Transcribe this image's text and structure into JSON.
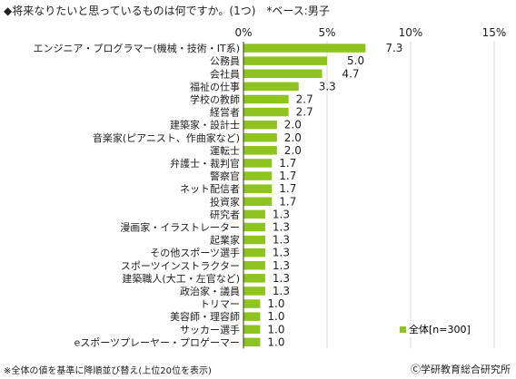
{
  "header": {
    "title": "◆将来なりたいと思っているものは何ですか。(1つ)　*ベース:男子"
  },
  "footer": {
    "note": "※全体の値を基準に降順並び替え(上位20位を表示)",
    "credit": "Ⓒ学研教育総合研究所"
  },
  "colors": {
    "bar": "#8fc31f",
    "grid": "#d9d9d9",
    "axis": "#333333"
  },
  "chart_data": {
    "type": "bar",
    "orientation": "horizontal",
    "x_ticks": [
      "0%",
      "5%",
      "10%",
      "15%"
    ],
    "xlim": [
      0,
      15
    ],
    "legend": {
      "label": "全体[n=300]",
      "position": "bottom-right"
    },
    "series": [
      {
        "name": "全体[n=300]"
      }
    ],
    "categories": [
      "エンジニア・プログラマー(機械・技術・IT系)",
      "公務員",
      "会社員",
      "福祉の仕事",
      "学校の教師",
      "経営者",
      "建築家・設計士",
      "音楽家(ピアニスト、作曲家など)",
      "運転士",
      "弁護士・裁判官",
      "警察官",
      "ネット配信者",
      "投資家",
      "研究者",
      "漫画家・イラストレーター",
      "起業家",
      "その他スポーツ選手",
      "スポーツインストラクター",
      "建築職人(大工・左官など)",
      "政治家・議員",
      "トリマー",
      "美容師・理容師",
      "サッカー選手",
      "eスポーツプレーヤー・プロゲーマー"
    ],
    "values": [
      7.3,
      5.0,
      4.7,
      3.3,
      2.7,
      2.7,
      2.0,
      2.0,
      2.0,
      1.7,
      1.7,
      1.7,
      1.7,
      1.3,
      1.3,
      1.3,
      1.3,
      1.3,
      1.3,
      1.3,
      1.0,
      1.0,
      1.0,
      1.0
    ],
    "value_labels": [
      "7.3",
      "5.0",
      "4.7",
      "3.3",
      "2.7",
      "2.7",
      "2.0",
      "2.0",
      "2.0",
      "1.7",
      "1.7",
      "1.7",
      "1.7",
      "1.3",
      "1.3",
      "1.3",
      "1.3",
      "1.3",
      "1.3",
      "1.3",
      "1.0",
      "1.0",
      "1.0",
      "1.0"
    ]
  }
}
